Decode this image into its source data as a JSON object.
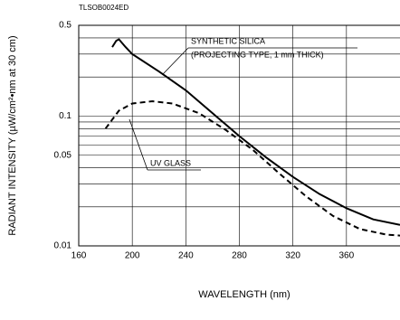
{
  "chart_data": {
    "type": "line",
    "code": "TLSOB0024ED",
    "xlabel": "WAVELENGTH (nm)",
    "ylabel": "RADIANT INTENSITY (µW/cm²•nm at 30 cm)",
    "xlim": [
      160,
      400
    ],
    "xticks": [
      160,
      200,
      240,
      280,
      320,
      360
    ],
    "ylim": [
      0.01,
      0.5
    ],
    "yticks": [
      0.01,
      0.05,
      0.1,
      0.5
    ],
    "y_minor_grid": [
      0.02,
      0.03,
      0.04,
      0.06,
      0.07,
      0.08,
      0.09,
      0.2,
      0.3,
      0.4
    ],
    "log_y": true,
    "grid": true,
    "series": [
      {
        "name": "SYNTHETIC SILICA",
        "note": "(PROJECTING TYPE, 1 mm THICK)",
        "color": "#000",
        "dash": false,
        "x": [
          185,
          188,
          190,
          195,
          200,
          220,
          240,
          260,
          280,
          300,
          320,
          340,
          360,
          380,
          400
        ],
        "values": [
          0.34,
          0.38,
          0.39,
          0.34,
          0.3,
          0.22,
          0.158,
          0.105,
          0.07,
          0.048,
          0.034,
          0.025,
          0.0195,
          0.016,
          0.0145
        ]
      },
      {
        "name": "UV GLASS",
        "color": "#000",
        "dash": true,
        "x": [
          180,
          190,
          200,
          215,
          230,
          250,
          270,
          290,
          310,
          330,
          350,
          370,
          390,
          400
        ],
        "values": [
          0.08,
          0.11,
          0.125,
          0.13,
          0.125,
          0.105,
          0.078,
          0.055,
          0.036,
          0.024,
          0.017,
          0.0135,
          0.0122,
          0.012
        ]
      }
    ]
  }
}
